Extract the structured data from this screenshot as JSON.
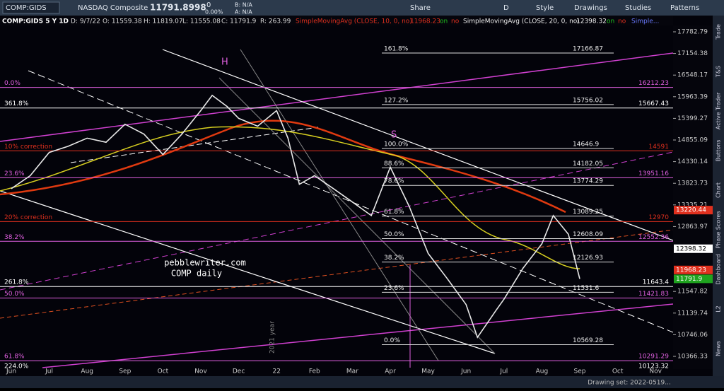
{
  "toolbar": {
    "symbol": "COMP:GIDS",
    "name": "NASDAQ Composite",
    "last": "11791.8998",
    "change": "0",
    "change_pct": "0.00%",
    "bid": "B: N/A",
    "ask": "A: N/A",
    "share": "Share",
    "period": "D",
    "style": "Style",
    "drawings": "Drawings",
    "studies": "Studies",
    "patterns": "Patterns"
  },
  "info_row": {
    "symbol": "COMP:GIDS 5 Y 1D",
    "date": "D: 9/7/22",
    "open": "O: 11559.38",
    "high": "H: 11819.07",
    "low": "L: 11555.08",
    "close": "C: 11791.9",
    "range": "R: 263.99",
    "sma10": "SimpleMovingAvg (CLOSE, 10, 0, no)",
    "sma10_value": "11968.23",
    "sma10_on": "on",
    "sma10_off": "no",
    "sma20": "SimpleMovingAvg (CLOSE, 20, 0, no)",
    "sma20_value": "12398.32",
    "sma20_on": "on",
    "sma20_off": "no",
    "more": "Simple..."
  },
  "chart_data": {
    "type": "line",
    "log_scale": true,
    "categories": [
      "Jun",
      "Jul",
      "Aug",
      "Sep",
      "Oct",
      "Nov",
      "Dec",
      "22",
      "Feb",
      "Mar",
      "Apr",
      "May",
      "Jun",
      "Jul",
      "Aug",
      "Sep",
      "Oct",
      "Nov"
    ],
    "ylim": [
      10366.33,
      17782.79
    ],
    "yticks": [
      17782.79,
      17154.38,
      16548.17,
      15963.39,
      15399.27,
      14855.09,
      14330.14,
      13823.73,
      13335.21,
      12863.97,
      11547.82,
      11139.74,
      10746.06,
      10366.33
    ],
    "series": [
      {
        "name": "COMP",
        "color": "#e8e8e8",
        "x": [
          0,
          0.5,
          1,
          1.5,
          2,
          2.5,
          3,
          3.5,
          4,
          4.5,
          5,
          5.3,
          5.7,
          6,
          6.5,
          7,
          7.3,
          7.6,
          8,
          8.5,
          9,
          9.5,
          10,
          10.5,
          11,
          11.5,
          12,
          12.3,
          12.8,
          13,
          13.5,
          14,
          14.3,
          14.7,
          15
        ],
        "values": [
          13700,
          14000,
          14550,
          14700,
          14900,
          14800,
          15250,
          15000,
          14500,
          15000,
          15600,
          16000,
          15700,
          15400,
          15200,
          15600,
          14900,
          13800,
          14000,
          13700,
          13400,
          13100,
          14200,
          13300,
          12300,
          11800,
          11300,
          10700,
          11200,
          11400,
          12000,
          12500,
          13100,
          12700,
          11791.9
        ]
      }
    ],
    "price_labels": [
      {
        "value": 13220.44,
        "color": "#e0301e",
        "text_color": "#ffffff"
      },
      {
        "value": 12398.32,
        "color": "#ffffff",
        "text_color": "#000000"
      },
      {
        "value": 11968.23,
        "color": "#e0301e",
        "text_color": "#ffffff"
      },
      {
        "value": 11791.9,
        "color": "#1fa31f",
        "text_color": "#ffffff"
      }
    ],
    "left_fibs": [
      {
        "label": "0.0%",
        "value": 16212.23,
        "color": "#e060e0"
      },
      {
        "label": "361.8%",
        "value": 15667.43,
        "color": "#ffffff"
      },
      {
        "label": "10% correction",
        "value": 14591,
        "color": "#e0301e"
      },
      {
        "label": "23.6%",
        "value": 13951.16,
        "color": "#e060e0"
      },
      {
        "label": "20% correction",
        "value": 12970,
        "color": "#e0301e"
      },
      {
        "label": "38.2%",
        "value": 12552.36,
        "color": "#e060e0"
      },
      {
        "label": "261.8%",
        "value": 11643.4,
        "color": "#ffffff"
      },
      {
        "label": "50.0%",
        "value": 11421.83,
        "color": "#e060e0"
      },
      {
        "label": "61.8%",
        "value": 10291.29,
        "color": "#e060e0"
      },
      {
        "label": "224.0%",
        "value": 10123.32,
        "color": "#ffffff"
      }
    ],
    "right_fibs": [
      {
        "label": "161.8%",
        "value": 17166.87
      },
      {
        "label": "127.2%",
        "value": 15756.02
      },
      {
        "label": "100.0%",
        "value": 14646.9
      },
      {
        "label": "88.6%",
        "value": 14182.05
      },
      {
        "label": "78.6%",
        "value": 13774.29
      },
      {
        "label": "61.8%",
        "value": 13089.25
      },
      {
        "label": "50.0%",
        "value": 12608.09
      },
      {
        "label": "38.2%",
        "value": 12126.93
      },
      {
        "label": "23.6%",
        "value": 11531.6
      },
      {
        "label": "0.0%",
        "value": 10569.28
      }
    ],
    "annotations": {
      "h": "H",
      "s": "S",
      "site": "pebblewriter.com",
      "caption": "COMP daily",
      "year": "2021 year"
    }
  },
  "sidebar": [
    "Trade",
    "T&S",
    "Active Trader",
    "Buttons",
    "Chart",
    "Phase Scores",
    "Dashboard",
    "L2",
    "News"
  ],
  "status": {
    "drawing_set": "Drawing set: 2022-0519..."
  }
}
